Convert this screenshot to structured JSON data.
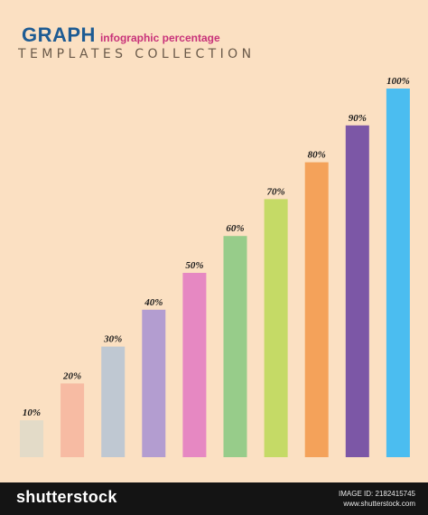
{
  "header": {
    "title": "GRAPH",
    "tagline": "infographic percentage",
    "subtitle": "TEMPLATES COLLECTION"
  },
  "chart_data": {
    "type": "bar",
    "categories": [
      "10%",
      "20%",
      "30%",
      "40%",
      "50%",
      "60%",
      "70%",
      "80%",
      "90%",
      "100%"
    ],
    "values": [
      10,
      20,
      30,
      40,
      50,
      60,
      70,
      80,
      90,
      100
    ],
    "colors": [
      "#e3dbc8",
      "#f7bba3",
      "#bfc8d2",
      "#b39dd0",
      "#e688c2",
      "#97cc8a",
      "#c5da66",
      "#f4a25a",
      "#7c57a6",
      "#4bbdf0"
    ],
    "title": "",
    "xlabel": "",
    "ylabel": "",
    "ylim": [
      0,
      100
    ],
    "grid": false
  },
  "footer": {
    "brand": "shutterstock",
    "image_id": "IMAGE ID: 2182415745",
    "site": "www.shutterstock.com"
  }
}
